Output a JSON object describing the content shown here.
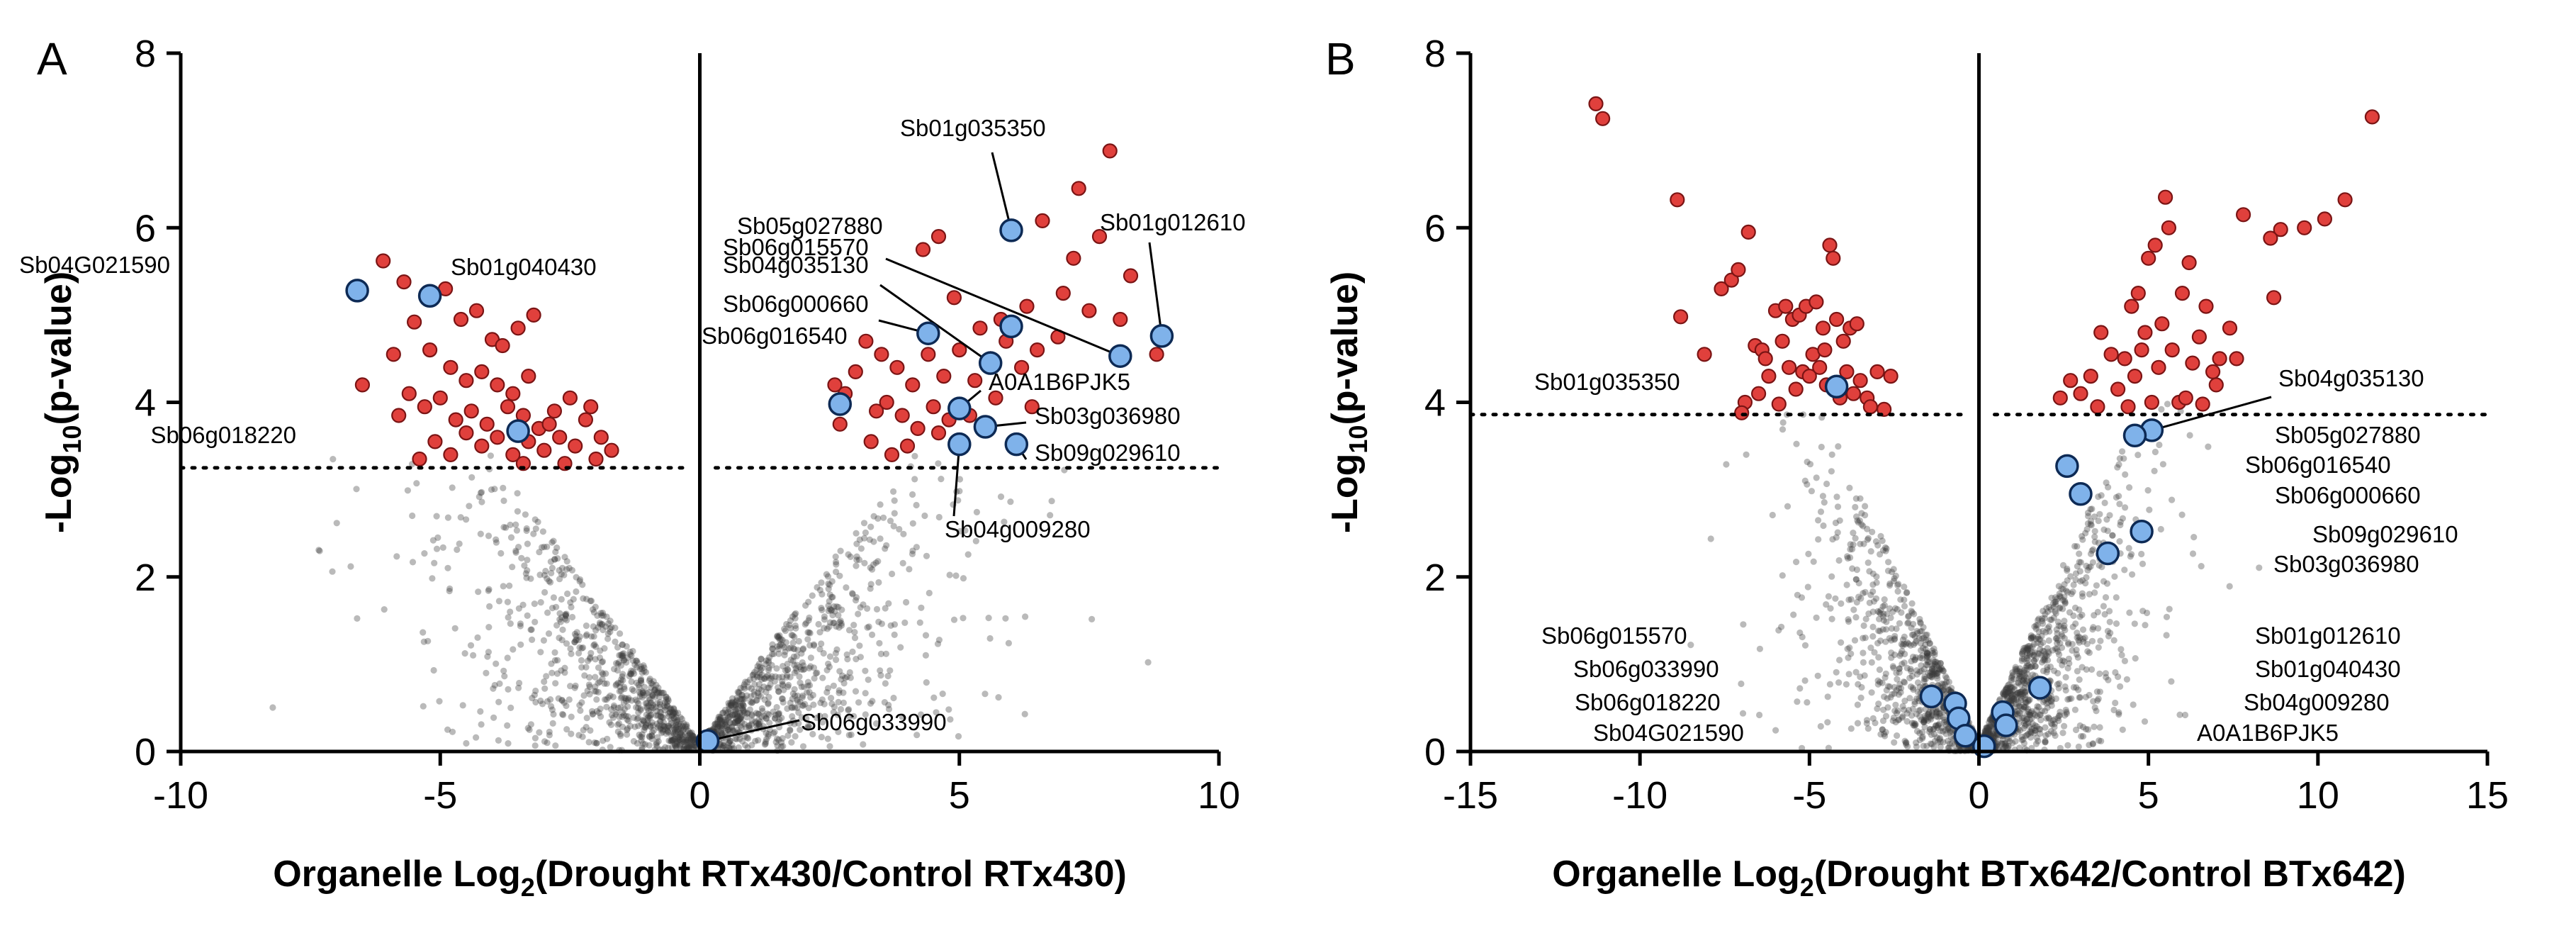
{
  "colors": {
    "background": "#3a3a3a",
    "significant": "#e0403c",
    "significant_edge": "#7a1414",
    "highlight": "#7fb2ea",
    "highlight_edge": "#0d2a55",
    "threshold": "#000000",
    "axis": "#000000"
  },
  "chart_data": [
    {
      "panel_label": "A",
      "type": "scatter",
      "title": "",
      "xlabel_main": "Organelle Log",
      "xlabel_sub": "2",
      "xlabel_rest": "(Drought RTx430/Control RTx430)",
      "ylabel_main": "-Log",
      "ylabel_sub": "10",
      "ylabel_rest": "(p-value)",
      "xlim": [
        -10,
        10
      ],
      "ylim": [
        0,
        8
      ],
      "xticks": [
        -10,
        -5,
        0,
        5,
        10
      ],
      "yticks": [
        0,
        2,
        4,
        6,
        8
      ],
      "xtick_labels": [
        "-10",
        "-5",
        "0",
        "5",
        "10"
      ],
      "ytick_labels": [
        "0",
        "2",
        "4",
        "6",
        "8"
      ],
      "threshold_y": 3.25,
      "background_seed": 11,
      "background_count": 1600,
      "background_xmax": 9,
      "significant_points": [
        [
          -6.1,
          5.62
        ],
        [
          -5.7,
          5.38
        ],
        [
          -5.5,
          4.92
        ],
        [
          -5.9,
          4.55
        ],
        [
          -6.5,
          4.2
        ],
        [
          -5.2,
          4.6
        ],
        [
          -5.6,
          4.1
        ],
        [
          -5.8,
          3.85
        ],
        [
          -5.3,
          3.95
        ],
        [
          -4.9,
          5.3
        ],
        [
          -4.6,
          4.95
        ],
        [
          -4.3,
          5.05
        ],
        [
          -4.0,
          4.72
        ],
        [
          -3.8,
          4.65
        ],
        [
          -3.5,
          4.85
        ],
        [
          -3.2,
          5.0
        ],
        [
          -4.8,
          4.4
        ],
        [
          -4.5,
          4.25
        ],
        [
          -4.2,
          4.35
        ],
        [
          -3.9,
          4.2
        ],
        [
          -3.6,
          4.1
        ],
        [
          -3.3,
          4.3
        ],
        [
          -5.0,
          4.05
        ],
        [
          -4.7,
          3.8
        ],
        [
          -4.4,
          3.9
        ],
        [
          -4.1,
          3.75
        ],
        [
          -3.7,
          3.95
        ],
        [
          -3.4,
          3.85
        ],
        [
          -3.1,
          3.7
        ],
        [
          -2.8,
          3.9
        ],
        [
          -2.5,
          4.05
        ],
        [
          -2.2,
          3.8
        ],
        [
          -1.9,
          3.6
        ],
        [
          -1.7,
          3.45
        ],
        [
          -2.0,
          3.35
        ],
        [
          -2.4,
          3.5
        ],
        [
          -2.7,
          3.6
        ],
        [
          -3.0,
          3.45
        ],
        [
          -3.3,
          3.55
        ],
        [
          -3.6,
          3.4
        ],
        [
          -3.9,
          3.6
        ],
        [
          -4.2,
          3.5
        ],
        [
          -4.5,
          3.65
        ],
        [
          -4.8,
          3.4
        ],
        [
          -5.1,
          3.55
        ],
        [
          -5.4,
          3.35
        ],
        [
          -2.6,
          3.3
        ],
        [
          -2.9,
          3.75
        ],
        [
          -2.1,
          3.95
        ],
        [
          -3.4,
          3.3
        ],
        [
          7.9,
          6.88
        ],
        [
          7.3,
          6.45
        ],
        [
          6.6,
          6.08
        ],
        [
          7.2,
          5.65
        ],
        [
          7.7,
          5.9
        ],
        [
          8.3,
          5.45
        ],
        [
          7.0,
          5.25
        ],
        [
          6.3,
          5.1
        ],
        [
          5.8,
          4.95
        ],
        [
          5.4,
          4.85
        ],
        [
          6.9,
          4.75
        ],
        [
          7.5,
          5.05
        ],
        [
          8.1,
          4.95
        ],
        [
          8.8,
          4.55
        ],
        [
          4.6,
          5.9
        ],
        [
          4.3,
          5.75
        ],
        [
          3.5,
          4.55
        ],
        [
          3.2,
          4.7
        ],
        [
          3.0,
          4.35
        ],
        [
          2.8,
          4.1
        ],
        [
          2.6,
          4.2
        ],
        [
          3.8,
          4.4
        ],
        [
          4.1,
          4.2
        ],
        [
          4.4,
          4.55
        ],
        [
          4.7,
          4.3
        ],
        [
          5.0,
          4.6
        ],
        [
          5.3,
          4.25
        ],
        [
          5.6,
          4.5
        ],
        [
          5.9,
          4.7
        ],
        [
          6.2,
          4.4
        ],
        [
          6.5,
          4.6
        ],
        [
          3.6,
          4.0
        ],
        [
          3.9,
          3.85
        ],
        [
          4.2,
          3.7
        ],
        [
          4.5,
          3.95
        ],
        [
          4.8,
          3.8
        ],
        [
          3.3,
          3.55
        ],
        [
          3.7,
          3.4
        ],
        [
          4.0,
          3.5
        ],
        [
          4.6,
          3.65
        ],
        [
          3.4,
          3.9
        ],
        [
          2.7,
          3.75
        ],
        [
          5.2,
          3.85
        ],
        [
          5.7,
          4.05
        ],
        [
          6.4,
          3.95
        ],
        [
          4.9,
          5.2
        ]
      ],
      "highlight_points": [
        {
          "x": -6.6,
          "y": 5.28,
          "label": "Sb04G021590"
        },
        {
          "x": -5.2,
          "y": 5.22,
          "label": "Sb01g040430"
        },
        {
          "x": -3.5,
          "y": 3.67,
          "label": "Sb06g018220"
        },
        {
          "x": 0.15,
          "y": 0.12,
          "label": "Sb06g033990"
        },
        {
          "x": 6.0,
          "y": 5.97,
          "label": "Sb01g035350"
        },
        {
          "x": 8.1,
          "y": 4.53,
          "label": "Sb06g015570"
        },
        {
          "x": 8.9,
          "y": 4.76,
          "label": "Sb01g012610"
        },
        {
          "x": 6.0,
          "y": 4.87,
          "label": "Sb05g027880"
        },
        {
          "x": 5.6,
          "y": 4.45,
          "label": "Sb04g035130"
        },
        {
          "x": 4.4,
          "y": 4.79,
          "label": "Sb06g000660"
        },
        {
          "x": 2.7,
          "y": 3.98,
          "label": "Sb06g016540"
        },
        {
          "x": 5.0,
          "y": 3.93,
          "label": "A0A1B6PJK5"
        },
        {
          "x": 5.5,
          "y": 3.72,
          "label": "Sb03g036980"
        },
        {
          "x": 6.1,
          "y": 3.52,
          "label": "Sb09g029610"
        },
        {
          "x": 5.0,
          "y": 3.52,
          "label": "Sb04g009280"
        }
      ]
    },
    {
      "panel_label": "B",
      "type": "scatter",
      "title": "",
      "xlabel_main": "Organelle Log",
      "xlabel_sub": "2",
      "xlabel_rest": "(Drought BTx642/Control BTx642)",
      "ylabel_main": "-Log",
      "ylabel_sub": "10",
      "ylabel_rest": "(p-value)",
      "xlim": [
        -15,
        15
      ],
      "ylim": [
        0,
        8
      ],
      "xticks": [
        -15,
        -10,
        -5,
        0,
        5,
        10,
        15
      ],
      "yticks": [
        0,
        2,
        4,
        6,
        8
      ],
      "xtick_labels": [
        "-15",
        "-10",
        "-5",
        "0",
        "5",
        "10",
        "15"
      ],
      "ytick_labels": [
        "0",
        "2",
        "4",
        "6",
        "8"
      ],
      "threshold_y": 3.86,
      "background_seed": 29,
      "background_count": 1800,
      "background_xmax": 9,
      "significant_points": [
        [
          -11.3,
          7.42
        ],
        [
          -11.1,
          7.25
        ],
        [
          -8.9,
          6.32
        ],
        [
          -8.8,
          4.98
        ],
        [
          -8.1,
          4.55
        ],
        [
          -7.6,
          5.3
        ],
        [
          -7.3,
          5.4
        ],
        [
          -7.1,
          5.52
        ],
        [
          -6.8,
          5.95
        ],
        [
          -6.6,
          4.65
        ],
        [
          -6.4,
          4.6
        ],
        [
          -6.2,
          4.3
        ],
        [
          -6.0,
          5.05
        ],
        [
          -5.7,
          5.1
        ],
        [
          -5.5,
          4.95
        ],
        [
          -5.3,
          5.0
        ],
        [
          -5.1,
          5.1
        ],
        [
          -4.8,
          5.15
        ],
        [
          -4.6,
          4.85
        ],
        [
          -4.4,
          5.8
        ],
        [
          -4.3,
          5.65
        ],
        [
          -4.2,
          4.95
        ],
        [
          -4.0,
          4.7
        ],
        [
          -3.8,
          4.85
        ],
        [
          -3.6,
          4.9
        ],
        [
          -5.6,
          4.4
        ],
        [
          -5.4,
          4.15
        ],
        [
          -5.2,
          4.35
        ],
        [
          -5.0,
          4.3
        ],
        [
          -4.9,
          4.55
        ],
        [
          -4.7,
          4.4
        ],
        [
          -4.5,
          4.2
        ],
        [
          -3.9,
          4.35
        ],
        [
          -3.7,
          4.1
        ],
        [
          -3.5,
          4.25
        ],
        [
          -3.3,
          4.05
        ],
        [
          -3.0,
          4.35
        ],
        [
          -2.6,
          4.3
        ],
        [
          -6.9,
          4.0
        ],
        [
          -6.5,
          4.1
        ],
        [
          -7.0,
          3.88
        ],
        [
          -5.9,
          3.98
        ],
        [
          -4.1,
          4.05
        ],
        [
          -3.2,
          3.95
        ],
        [
          -2.8,
          3.92
        ],
        [
          -6.3,
          4.5
        ],
        [
          -5.8,
          4.7
        ],
        [
          -4.55,
          4.6
        ],
        [
          11.6,
          7.27
        ],
        [
          10.8,
          6.32
        ],
        [
          10.2,
          6.1
        ],
        [
          9.6,
          6.0
        ],
        [
          8.9,
          5.98
        ],
        [
          8.6,
          5.88
        ],
        [
          7.8,
          6.15
        ],
        [
          8.7,
          5.2
        ],
        [
          5.5,
          6.35
        ],
        [
          5.6,
          6.0
        ],
        [
          5.2,
          5.8
        ],
        [
          5.0,
          5.65
        ],
        [
          4.7,
          5.25
        ],
        [
          4.5,
          5.1
        ],
        [
          6.2,
          5.6
        ],
        [
          6.0,
          5.25
        ],
        [
          6.7,
          5.1
        ],
        [
          7.1,
          4.5
        ],
        [
          7.4,
          4.85
        ],
        [
          6.5,
          4.75
        ],
        [
          4.9,
          4.8
        ],
        [
          4.3,
          4.5
        ],
        [
          3.6,
          4.8
        ],
        [
          3.9,
          4.55
        ],
        [
          3.3,
          4.3
        ],
        [
          2.7,
          4.25
        ],
        [
          2.4,
          4.05
        ],
        [
          3.0,
          4.1
        ],
        [
          4.1,
          4.15
        ],
        [
          4.6,
          4.3
        ],
        [
          5.3,
          4.4
        ],
        [
          5.7,
          4.6
        ],
        [
          6.3,
          4.45
        ],
        [
          6.9,
          4.35
        ],
        [
          7.6,
          4.5
        ],
        [
          5.1,
          4.0
        ],
        [
          5.9,
          4.0
        ],
        [
          4.4,
          3.95
        ],
        [
          6.6,
          3.98
        ],
        [
          3.5,
          3.95
        ],
        [
          4.8,
          4.6
        ],
        [
          5.4,
          4.9
        ],
        [
          6.1,
          4.05
        ],
        [
          7.0,
          4.2
        ]
      ],
      "highlight_points": [
        {
          "x": -4.2,
          "y": 4.18,
          "label": "Sb01g035350"
        },
        {
          "x": 5.1,
          "y": 3.68,
          "label": "Sb04g035130"
        },
        {
          "x": 4.6,
          "y": 3.62,
          "label": "Sb05g027880"
        },
        {
          "x": 2.6,
          "y": 3.27,
          "label": "Sb06g016540"
        },
        {
          "x": 3.0,
          "y": 2.95,
          "label": "Sb06g000660"
        },
        {
          "x": 4.8,
          "y": 2.52,
          "label": "Sb09g029610"
        },
        {
          "x": 3.8,
          "y": 2.27,
          "label": "Sb03g036980"
        },
        {
          "x": -1.4,
          "y": 0.63,
          "label": "Sb06g015570"
        },
        {
          "x": -0.7,
          "y": 0.55,
          "label": "Sb06g033990"
        },
        {
          "x": -0.6,
          "y": 0.38,
          "label": "Sb06g018220"
        },
        {
          "x": -0.4,
          "y": 0.18,
          "label": "Sb04G021590"
        },
        {
          "x": 0.7,
          "y": 0.45,
          "label": "Sb01g012610"
        },
        {
          "x": 0.8,
          "y": 0.3,
          "label": "Sb01g040430"
        },
        {
          "x": 0.15,
          "y": 0.06,
          "label": "Sb04g009280"
        },
        {
          "x": 1.8,
          "y": 0.73,
          "label": "A0A1B6PJK5"
        }
      ]
    }
  ]
}
